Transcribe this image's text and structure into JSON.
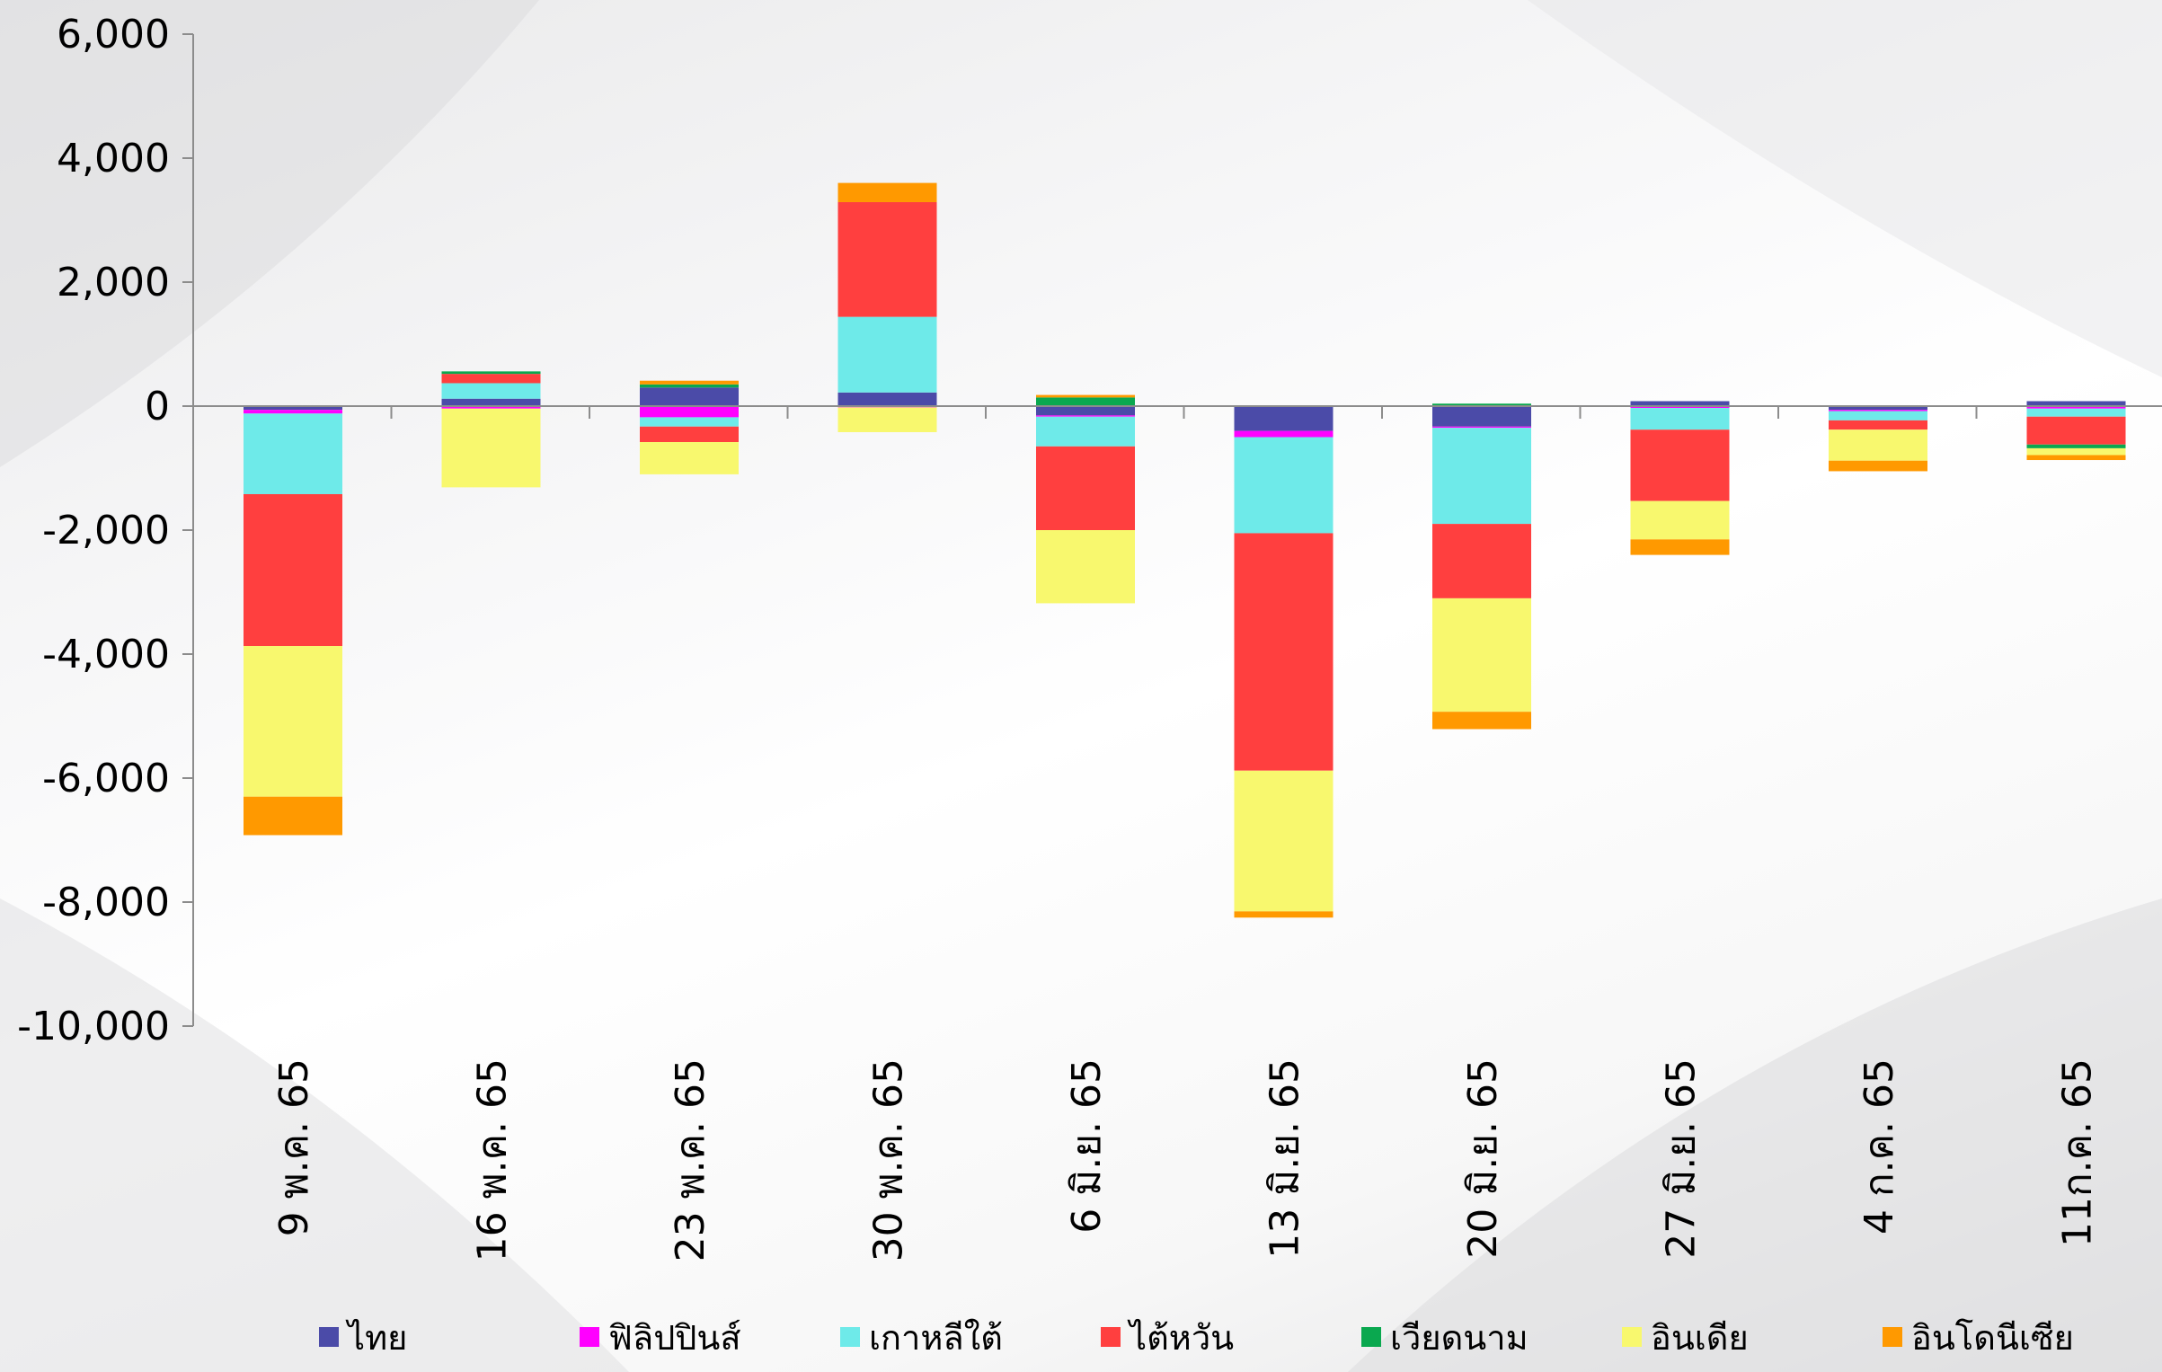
{
  "chart_data": {
    "type": "bar",
    "stacked": true,
    "title": "",
    "xlabel": "",
    "ylabel": "",
    "ylim": [
      -10000,
      6000
    ],
    "yticks": [
      6000,
      4000,
      2000,
      0,
      -2000,
      -4000,
      -6000,
      -8000,
      -10000
    ],
    "ytick_labels": [
      "6,000",
      "4,000",
      "2,000",
      "0",
      "-2,000",
      "-4,000",
      "-6,000",
      "-8,000",
      "-10,000"
    ],
    "grid": false,
    "legend_position": "bottom",
    "categories": [
      "9 พ.ค. 65",
      "16 พ.ค. 65",
      "23 พ.ค. 65",
      "30 พ.ค. 65",
      "6 มิ.ย. 65",
      "13 มิ.ย. 65",
      "20 มิ.ย. 65",
      "27 มิ.ย. 65",
      "4 ก.ค. 65",
      "11ก.ค. 65"
    ],
    "series": [
      {
        "name": "ไทย",
        "color": "#4b4ba8",
        "values": [
          -60,
          120,
          300,
          220,
          -150,
          -400,
          -330,
          80,
          -60,
          80
        ]
      },
      {
        "name": "ฟิลิปปินส์",
        "color": "#ff00ff",
        "values": [
          -60,
          -40,
          -180,
          -20,
          -20,
          -100,
          -20,
          -30,
          -20,
          -40
        ]
      },
      {
        "name": "เกาหลีใต้",
        "color": "#6eeae9",
        "values": [
          -1300,
          250,
          -150,
          1220,
          -480,
          -1550,
          -1550,
          -350,
          -150,
          -130
        ]
      },
      {
        "name": "ไต้หวัน",
        "color": "#ff3f3f",
        "values": [
          -2450,
          150,
          -250,
          1850,
          -1350,
          -3830,
          -1200,
          -1150,
          -150,
          -450
        ]
      },
      {
        "name": "เวียดนาม",
        "color": "#0aa84f",
        "values": [
          0,
          40,
          50,
          0,
          140,
          0,
          40,
          0,
          0,
          -60
        ]
      },
      {
        "name": "อินเดีย",
        "color": "#f8f86e",
        "values": [
          -2430,
          -1270,
          -520,
          -400,
          -1180,
          -2270,
          -1830,
          -620,
          -500,
          -110
        ]
      },
      {
        "name": "อินโดนีเซีย",
        "color": "#ff9900",
        "values": [
          -620,
          0,
          60,
          310,
          40,
          -100,
          -280,
          -250,
          -170,
          -80
        ]
      }
    ]
  }
}
